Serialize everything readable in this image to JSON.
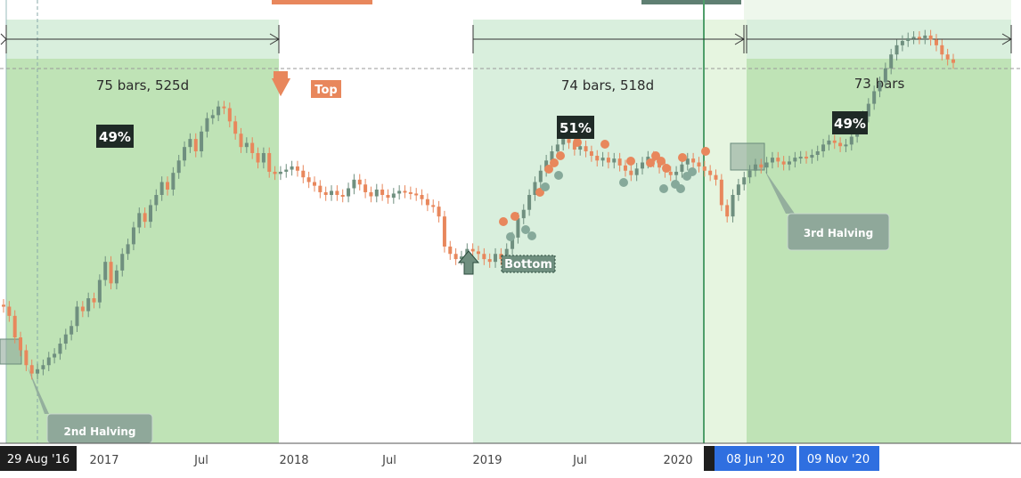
{
  "chart_data": {
    "type": "candlestick",
    "x_axis": {
      "tick_labels": [
        "2017",
        "Jul",
        "2018",
        "Jul",
        "2019",
        "Jul",
        "2020"
      ],
      "flag_dates": [
        "29 Aug '16",
        "08 Jun '20",
        "09 Nov '20"
      ]
    },
    "ranges": [
      {
        "label": "75 bars, 525d",
        "percent": "49%"
      },
      {
        "label": "74 bars, 518d",
        "percent": "51%"
      },
      {
        "label": "73 bars",
        "percent": "49%"
      }
    ],
    "annotations": {
      "top": "Top",
      "bottom": "Bottom",
      "halving_2": "2nd Halving",
      "halving_3": "3rd Halving"
    },
    "colors": {
      "up": "#6f8f7f",
      "down": "#e8875c",
      "zone_green": "#bfe3b6",
      "zone_light": "#d9efdd",
      "zone_pale": "#e6f5e0",
      "flag_dark": "#1e1e1e",
      "flag_blue": "#2f6fe0"
    },
    "closes": [
      2.2,
      2.0,
      1.6,
      1.4,
      1.2,
      1.1,
      1.15,
      1.2,
      1.3,
      1.35,
      1.5,
      1.65,
      1.8,
      2.2,
      2.1,
      2.4,
      2.3,
      2.9,
      3.5,
      2.8,
      3.2,
      3.8,
      4.2,
      5.0,
      5.8,
      5.3,
      6.3,
      7.0,
      8.0,
      7.4,
      8.8,
      10.0,
      11.5,
      12.5,
      11.0,
      13.5,
      15.5,
      16.0,
      17.5,
      17.2,
      15.0,
      13.2,
      11.5,
      12.0,
      10.8,
      9.8,
      10.8,
      8.9,
      8.7,
      8.9,
      9.1,
      9.4,
      9.0,
      8.4,
      8.0,
      7.7,
      7.2,
      7.0,
      7.3,
      7.0,
      6.9,
      7.5,
      8.2,
      7.8,
      7.2,
      6.9,
      7.4,
      7.0,
      6.8,
      7.1,
      7.3,
      7.2,
      7.1,
      7.0,
      6.7,
      6.3,
      6.2,
      5.6,
      4.1,
      3.8,
      3.6,
      3.7,
      4.0,
      3.9,
      3.8,
      3.6,
      3.5,
      3.8,
      3.6,
      4.0,
      4.5,
      5.5,
      6.0,
      7.0,
      8.0,
      9.0,
      10.0,
      11.0,
      11.8,
      12.5,
      12.0,
      11.2,
      11.6,
      11.0,
      10.5,
      10.0,
      10.3,
      9.8,
      10.2,
      9.5,
      9.0,
      8.6,
      9.2,
      9.8,
      10.4,
      9.9,
      9.3,
      8.9,
      8.6,
      8.9,
      9.6,
      10.2,
      9.8,
      9.4,
      9.0,
      8.6,
      8.2,
      6.3,
      5.6,
      7.0,
      7.8,
      8.4,
      9.0,
      9.6,
      9.3,
      9.8,
      10.3,
      9.9,
      9.6,
      9.9,
      10.3,
      10.4,
      10.3,
      10.6,
      11.0,
      11.8,
      12.3,
      12.0,
      11.6,
      11.8,
      12.8,
      14.0,
      15.8,
      18.0,
      20.5,
      22.5,
      26.0,
      30.0,
      33.0,
      34.5,
      35.5,
      36.0,
      35.5,
      36.5,
      35.0,
      33.0,
      30.0,
      28.5,
      27.5
    ]
  }
}
